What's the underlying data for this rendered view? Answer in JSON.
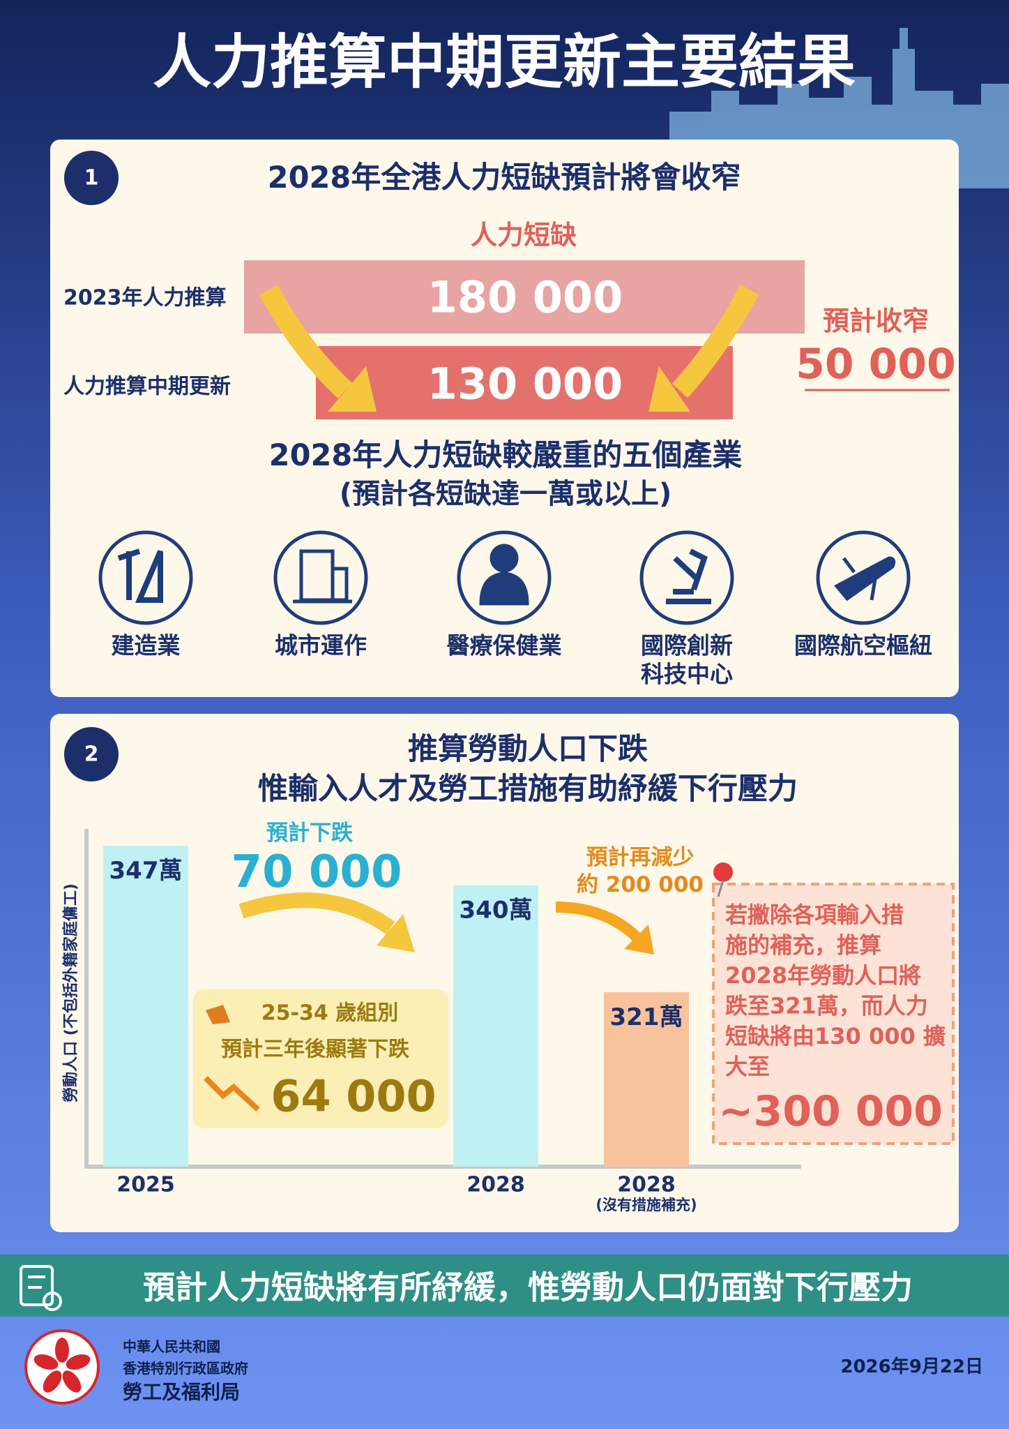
{
  "header": {
    "title": "人力推算中期更新主要結果"
  },
  "section1": {
    "number": "1",
    "heading": "2028年全港人力短缺預計將會收窄",
    "shortage_label": "人力短缺",
    "rows": [
      {
        "label": "2023年人力推算",
        "value": "180 000"
      },
      {
        "label": "人力推算中期更新",
        "value": "130 000"
      }
    ],
    "narrowing_label": "預計收窄",
    "narrowing_value": "50 000",
    "industries_heading": "2028年人力短缺較嚴重的五個產業",
    "industries_subheading": "(預計各短缺達一萬或以上)",
    "industries": [
      [
        "建造業"
      ],
      [
        "城市運作"
      ],
      [
        "醫療保健業"
      ],
      [
        "國際創新",
        "科技中心"
      ],
      [
        "國際航空樞紐"
      ]
    ]
  },
  "section2": {
    "number": "2",
    "heading_lines": [
      "推算勞動人口下跌",
      "惟輸入人才及勞工措施有助紓緩下行壓力"
    ],
    "drop_label": "預計下跌",
    "drop_value": "70 000",
    "age_box": {
      "group": "25-34 歲組別",
      "text": "預計三年後顯著下跌",
      "value": "64 000"
    },
    "further_label": "預計再減少",
    "further_value": "約 200 000",
    "note_lines": [
      "若撇除各項輸入措",
      "施的補充，推算",
      "2028年勞動人口將",
      "跌至321萬，而人力",
      "短缺將由130 000 擴",
      "大至"
    ],
    "note_value": "~300 000"
  },
  "chart_data": {
    "type": "bar",
    "y_label": "勞動人口 (不包括外籍家庭傭工)",
    "categories": [
      "2025",
      "2028",
      "2028"
    ],
    "category_notes": [
      null,
      null,
      "(沒有措施補充)"
    ],
    "values": [
      347,
      340,
      321
    ],
    "value_labels": [
      "347萬",
      "340萬",
      "321萬"
    ],
    "colors": [
      "#bff0f3",
      "#bff0f3",
      "#f8c39c"
    ],
    "ylim": [
      290,
      350
    ]
  },
  "banner": {
    "text": "預計人力短缺將有所紓緩，惟勞動人口仍面對下行壓力"
  },
  "footer": {
    "org_lines": [
      "中華人民共和國",
      "香港特別行政區政府",
      "勞工及福利局"
    ],
    "date": "2026年9月22日"
  }
}
